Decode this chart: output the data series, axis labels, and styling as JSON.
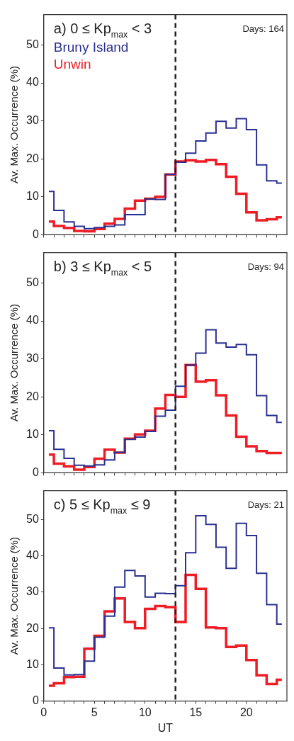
{
  "chart_data": [
    {
      "type": "step",
      "title": "a) 0 ≤ Kp$_{max}$ < 3",
      "ylabel": "Av. Max. Occurrence (%)",
      "annotations": [
        "Days: 164"
      ],
      "legend": "top left",
      "tick_labels": "y",
      "marker": "none",
      "x": [
        0.5,
        1.5,
        2.5,
        3.5,
        4.5,
        5.5,
        6.5,
        7.5,
        8.5,
        9.5,
        10.5,
        11.5,
        12.5,
        13.5,
        14.5,
        15.5,
        16.5,
        17.5,
        18.5,
        19.5,
        20.5,
        21.5,
        22.5,
        23.5
      ],
      "xlim": [
        0,
        24
      ],
      "xticks": [
        0,
        {
          "value": 1,
          "label": null
        },
        {
          "value": 2,
          "label": null
        },
        {
          "value": 3,
          "label": null
        },
        {
          "value": 4,
          "label": null
        },
        5,
        {
          "value": 6,
          "label": null
        },
        {
          "value": 7,
          "label": null
        },
        {
          "value": 8,
          "label": null
        },
        {
          "value": 9,
          "label": null
        },
        10,
        {
          "value": 11,
          "label": null
        },
        {
          "value": 12,
          "label": null
        },
        {
          "value": 13,
          "label": null
        },
        {
          "value": 14,
          "label": null
        },
        15,
        {
          "value": 16,
          "label": null
        },
        {
          "value": 17,
          "label": null
        },
        {
          "value": 18,
          "label": null
        },
        {
          "value": 19,
          "label": null
        },
        20,
        {
          "value": 21,
          "label": null
        },
        {
          "value": 22,
          "label": null
        },
        {
          "value": 23,
          "label": null
        }
      ],
      "ylim": [
        0,
        58
      ],
      "yticks": [
        0,
        10,
        20,
        30,
        40,
        50
      ],
      "ref_lines": [
        {
          "axis": "x",
          "value": 13,
          "color": "#222222",
          "line_style": "dashed"
        }
      ],
      "series": [
        {
          "name": "Bruny Island",
          "color": "#2b3090",
          "values": [
            11.4,
            6.4,
            3.4,
            2.2,
            1.6,
            1.9,
            2.2,
            2.6,
            5.3,
            5.3,
            9.4,
            9.3,
            15.9,
            19.1,
            21.5,
            24.7,
            26.8,
            29.9,
            28.1,
            30.6,
            27.7,
            18.4,
            14.2,
            13.6
          ]
        },
        {
          "name": "Unwin",
          "color": "#ee1c25",
          "values": [
            3.5,
            2.3,
            1.8,
            1.0,
            0.9,
            1.5,
            2.9,
            4.2,
            6.9,
            9.0,
            9.5,
            10.0,
            15.9,
            19.3,
            19.6,
            19.3,
            19.7,
            18.6,
            15.3,
            10.8,
            5.9,
            3.8,
            4.1,
            4.6
          ]
        }
      ]
    },
    {
      "type": "step",
      "title": "b) 3 ≤ Kp$_{max}$ < 5",
      "ylabel": "Av. Max. Occurrence (%)",
      "annotations": [
        "Days: 94"
      ],
      "tick_labels": "y",
      "marker": "none",
      "x": [
        0.5,
        1.5,
        2.5,
        3.5,
        4.5,
        5.5,
        6.5,
        7.5,
        8.5,
        9.5,
        10.5,
        11.5,
        12.5,
        13.5,
        14.5,
        15.5,
        16.5,
        17.5,
        18.5,
        19.5,
        20.5,
        21.5,
        22.5,
        23.5
      ],
      "xlim": [
        0,
        24
      ],
      "xticks": [
        0,
        {
          "value": 1,
          "label": null
        },
        {
          "value": 2,
          "label": null
        },
        {
          "value": 3,
          "label": null
        },
        {
          "value": 4,
          "label": null
        },
        5,
        {
          "value": 6,
          "label": null
        },
        {
          "value": 7,
          "label": null
        },
        {
          "value": 8,
          "label": null
        },
        {
          "value": 9,
          "label": null
        },
        10,
        {
          "value": 11,
          "label": null
        },
        {
          "value": 12,
          "label": null
        },
        {
          "value": 13,
          "label": null
        },
        {
          "value": 14,
          "label": null
        },
        15,
        {
          "value": 16,
          "label": null
        },
        {
          "value": 17,
          "label": null
        },
        {
          "value": 18,
          "label": null
        },
        {
          "value": 19,
          "label": null
        },
        20,
        {
          "value": 21,
          "label": null
        },
        {
          "value": 22,
          "label": null
        },
        {
          "value": 23,
          "label": null
        }
      ],
      "ylim": [
        0,
        58
      ],
      "yticks": [
        0,
        10,
        20,
        30,
        40,
        50
      ],
      "ref_lines": [
        {
          "axis": "x",
          "value": 13,
          "color": "#222222",
          "line_style": "dashed"
        }
      ],
      "series": [
        {
          "color": "#2b3090",
          "values": [
            11.1,
            6.2,
            3.8,
            2.0,
            1.8,
            2.1,
            3.4,
            5.4,
            8.8,
            9.4,
            10.9,
            14.9,
            16.5,
            22.8,
            28.4,
            31.5,
            37.7,
            34.2,
            33.1,
            33.8,
            31.1,
            20.3,
            15.1,
            13.3
          ]
        },
        {
          "color": "#ee1c25",
          "values": [
            4.8,
            2.4,
            1.7,
            0.8,
            1.5,
            3.7,
            6.1,
            5.3,
            9.0,
            10.1,
            11.1,
            16.9,
            20.5,
            20.0,
            28.4,
            24.0,
            24.4,
            20.4,
            15.1,
            9.5,
            7.0,
            5.7,
            5.2,
            5.2
          ]
        }
      ]
    },
    {
      "type": "step",
      "title": "c) 5 ≤ Kp$_{max}$ ≤ 9",
      "xlabel": "UT",
      "ylabel": "Av. Max. Occurrence (%)",
      "annotations": [
        "Days: 21"
      ],
      "marker": "none",
      "x": [
        0.5,
        1.5,
        2.5,
        3.5,
        4.5,
        5.5,
        6.5,
        7.5,
        8.5,
        9.5,
        10.5,
        11.5,
        12.5,
        13.5,
        14.5,
        15.5,
        16.5,
        17.5,
        18.5,
        19.5,
        20.5,
        21.5,
        22.5,
        23.5
      ],
      "xlim": [
        0,
        24
      ],
      "xticks": [
        0,
        {
          "value": 1,
          "label": null
        },
        {
          "value": 2,
          "label": null
        },
        {
          "value": 3,
          "label": null
        },
        {
          "value": 4,
          "label": null
        },
        5,
        {
          "value": 6,
          "label": null
        },
        {
          "value": 7,
          "label": null
        },
        {
          "value": 8,
          "label": null
        },
        {
          "value": 9,
          "label": null
        },
        10,
        {
          "value": 11,
          "label": null
        },
        {
          "value": 12,
          "label": null
        },
        {
          "value": 13,
          "label": null
        },
        {
          "value": 14,
          "label": null
        },
        15,
        {
          "value": 16,
          "label": null
        },
        {
          "value": 17,
          "label": null
        },
        {
          "value": 18,
          "label": null
        },
        {
          "value": 19,
          "label": null
        },
        20,
        {
          "value": 21,
          "label": null
        },
        {
          "value": 22,
          "label": null
        },
        {
          "value": 23,
          "label": null
        }
      ],
      "ylim": [
        0,
        58
      ],
      "yticks": [
        0,
        10,
        20,
        30,
        40,
        50
      ],
      "ref_lines": [
        {
          "axis": "x",
          "value": 13,
          "color": "#222222",
          "line_style": "dashed"
        }
      ],
      "series": [
        {
          "color": "#2b3090",
          "values": [
            20.2,
            9.1,
            7.2,
            7.3,
            11.0,
            17.6,
            23.4,
            31.4,
            36.0,
            34.5,
            28.7,
            29.7,
            29.6,
            31.8,
            40.9,
            51.1,
            48.7,
            42.4,
            36.6,
            49.0,
            45.6,
            35.2,
            26.6,
            21.2
          ]
        },
        {
          "color": "#ee1c25",
          "values": [
            4.2,
            4.9,
            6.6,
            6.7,
            14.4,
            18.0,
            24.7,
            28.3,
            21.8,
            20.1,
            25.4,
            26.2,
            25.9,
            21.8,
            34.8,
            30.9,
            20.3,
            20.1,
            14.9,
            15.3,
            11.3,
            7.1,
            4.7,
            5.9
          ]
        }
      ]
    }
  ]
}
